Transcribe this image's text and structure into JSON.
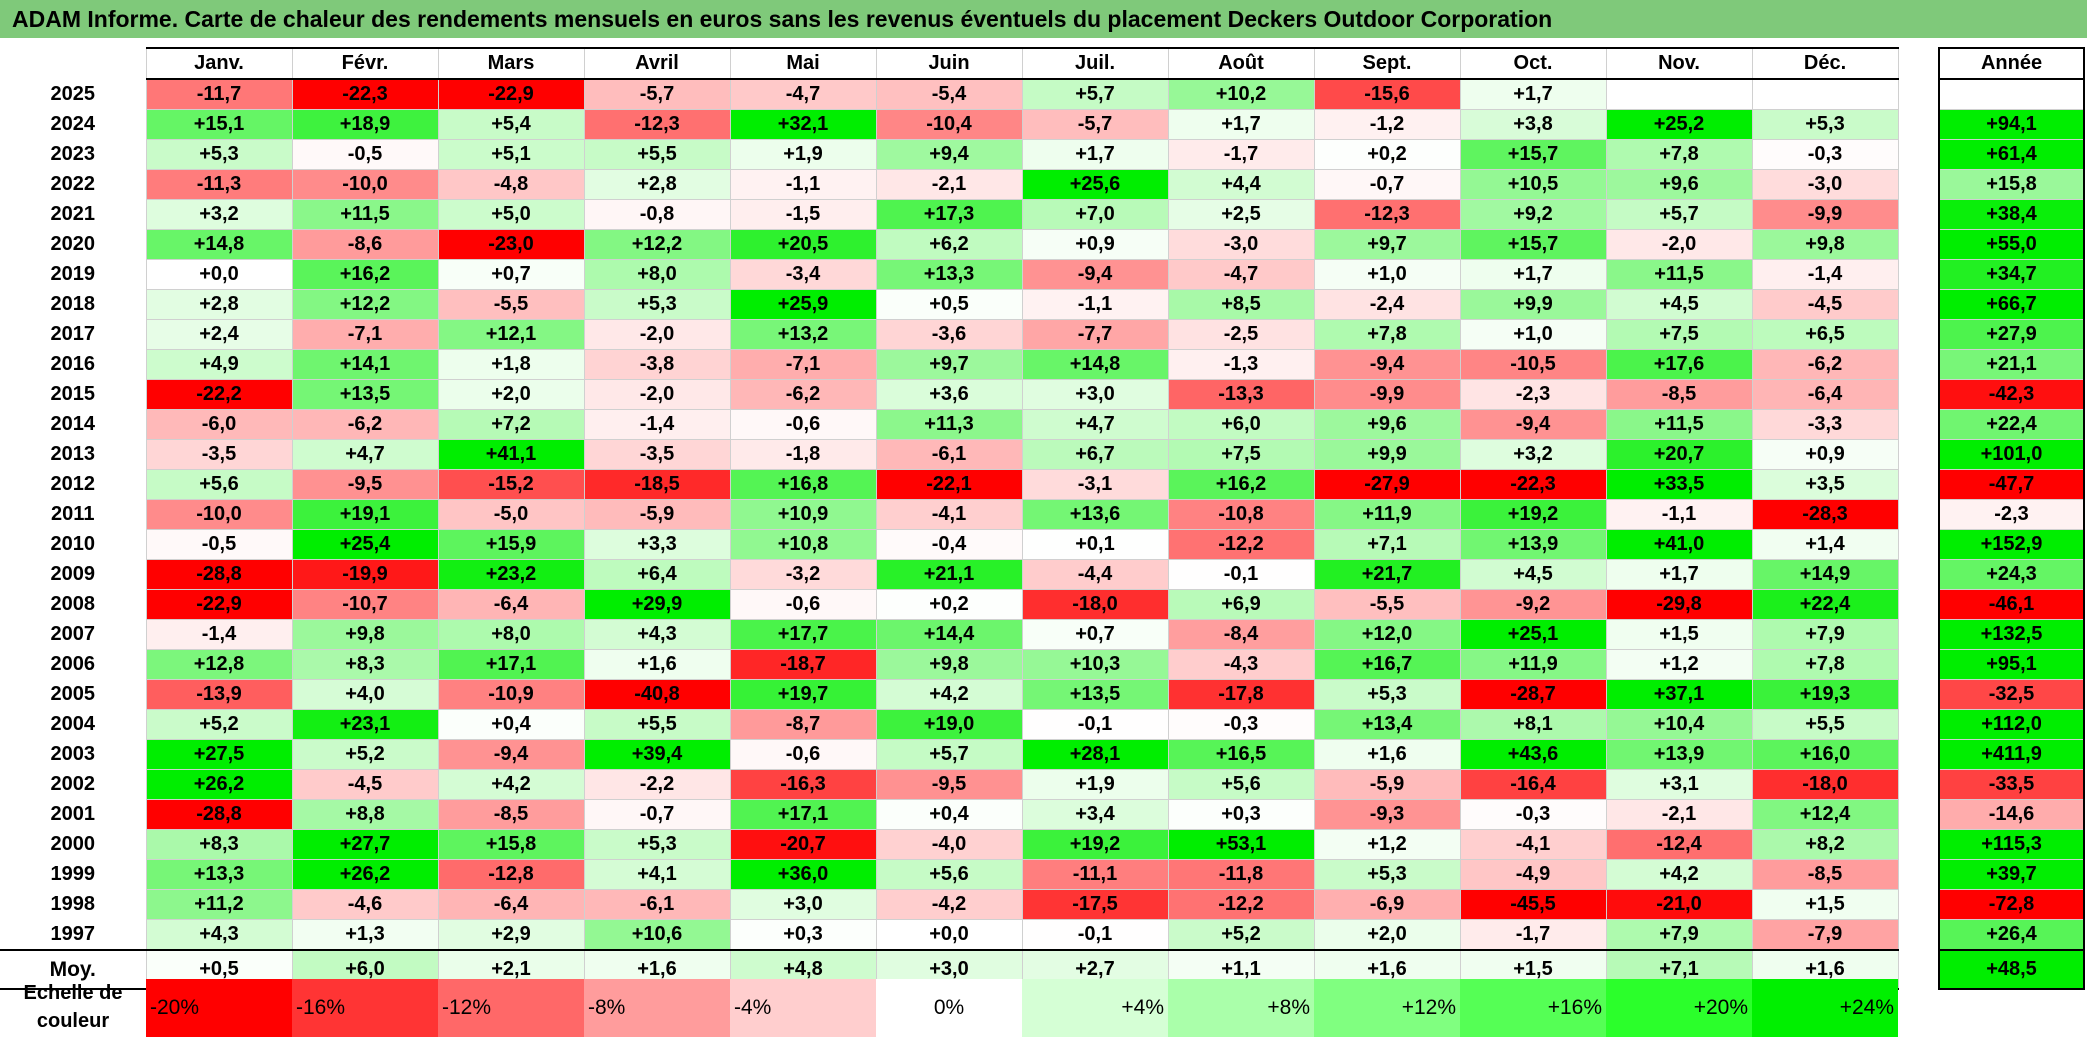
{
  "title": "ADAM Informe. Carte de chaleur des rendements mensuels en euros sans les revenus éventuels du placement Deckers Outdoor Corporation",
  "chart_data": {
    "type": "heatmap",
    "columns": [
      "Janv.",
      "Févr.",
      "Mars",
      "Avril",
      "Mai",
      "Juin",
      "Juil.",
      "Août",
      "Sept.",
      "Oct.",
      "Nov.",
      "Déc."
    ],
    "annual_header": "Année",
    "rows": [
      {
        "year": "2025",
        "values": [
          "-11,7",
          "-22,3",
          "-22,9",
          "-5,7",
          "-4,7",
          "-5,4",
          "+5,7",
          "+10,2",
          "-15,6",
          "+1,7",
          "",
          ""
        ],
        "annual": ""
      },
      {
        "year": "2024",
        "values": [
          "+15,1",
          "+18,9",
          "+5,4",
          "-12,3",
          "+32,1",
          "-10,4",
          "-5,7",
          "+1,7",
          "-1,2",
          "+3,8",
          "+25,2",
          "+5,3"
        ],
        "annual": "+94,1"
      },
      {
        "year": "2023",
        "values": [
          "+5,3",
          "-0,5",
          "+5,1",
          "+5,5",
          "+1,9",
          "+9,4",
          "+1,7",
          "-1,7",
          "+0,2",
          "+15,7",
          "+7,8",
          "-0,3"
        ],
        "annual": "+61,4"
      },
      {
        "year": "2022",
        "values": [
          "-11,3",
          "-10,0",
          "-4,8",
          "+2,8",
          "-1,1",
          "-2,1",
          "+25,6",
          "+4,4",
          "-0,7",
          "+10,5",
          "+9,6",
          "-3,0"
        ],
        "annual": "+15,8"
      },
      {
        "year": "2021",
        "values": [
          "+3,2",
          "+11,5",
          "+5,0",
          "-0,8",
          "-1,5",
          "+17,3",
          "+7,0",
          "+2,5",
          "-12,3",
          "+9,2",
          "+5,7",
          "-9,9"
        ],
        "annual": "+38,4"
      },
      {
        "year": "2020",
        "values": [
          "+14,8",
          "-8,6",
          "-23,0",
          "+12,2",
          "+20,5",
          "+6,2",
          "+0,9",
          "-3,0",
          "+9,7",
          "+15,7",
          "-2,0",
          "+9,8"
        ],
        "annual": "+55,0"
      },
      {
        "year": "2019",
        "values": [
          "+0,0",
          "+16,2",
          "+0,7",
          "+8,0",
          "-3,4",
          "+13,3",
          "-9,4",
          "-4,7",
          "+1,0",
          "+1,7",
          "+11,5",
          "-1,4"
        ],
        "annual": "+34,7"
      },
      {
        "year": "2018",
        "values": [
          "+2,8",
          "+12,2",
          "-5,5",
          "+5,3",
          "+25,9",
          "+0,5",
          "-1,1",
          "+8,5",
          "-2,4",
          "+9,9",
          "+4,5",
          "-4,5"
        ],
        "annual": "+66,7"
      },
      {
        "year": "2017",
        "values": [
          "+2,4",
          "-7,1",
          "+12,1",
          "-2,0",
          "+13,2",
          "-3,6",
          "-7,7",
          "-2,5",
          "+7,8",
          "+1,0",
          "+7,5",
          "+6,5"
        ],
        "annual": "+27,9"
      },
      {
        "year": "2016",
        "values": [
          "+4,9",
          "+14,1",
          "+1,8",
          "-3,8",
          "-7,1",
          "+9,7",
          "+14,8",
          "-1,3",
          "-9,4",
          "-10,5",
          "+17,6",
          "-6,2"
        ],
        "annual": "+21,1"
      },
      {
        "year": "2015",
        "values": [
          "-22,2",
          "+13,5",
          "+2,0",
          "-2,0",
          "-6,2",
          "+3,6",
          "+3,0",
          "-13,3",
          "-9,9",
          "-2,3",
          "-8,5",
          "-6,4"
        ],
        "annual": "-42,3"
      },
      {
        "year": "2014",
        "values": [
          "-6,0",
          "-6,2",
          "+7,2",
          "-1,4",
          "-0,6",
          "+11,3",
          "+4,7",
          "+6,0",
          "+9,6",
          "-9,4",
          "+11,5",
          "-3,3"
        ],
        "annual": "+22,4"
      },
      {
        "year": "2013",
        "values": [
          "-3,5",
          "+4,7",
          "+41,1",
          "-3,5",
          "-1,8",
          "-6,1",
          "+6,7",
          "+7,5",
          "+9,9",
          "+3,2",
          "+20,7",
          "+0,9"
        ],
        "annual": "+101,0"
      },
      {
        "year": "2012",
        "values": [
          "+5,6",
          "-9,5",
          "-15,2",
          "-18,5",
          "+16,8",
          "-22,1",
          "-3,1",
          "+16,2",
          "-27,9",
          "-22,3",
          "+33,5",
          "+3,5"
        ],
        "annual": "-47,7"
      },
      {
        "year": "2011",
        "values": [
          "-10,0",
          "+19,1",
          "-5,0",
          "-5,9",
          "+10,9",
          "-4,1",
          "+13,6",
          "-10,8",
          "+11,9",
          "+19,2",
          "-1,1",
          "-28,3"
        ],
        "annual": "-2,3"
      },
      {
        "year": "2010",
        "values": [
          "-0,5",
          "+25,4",
          "+15,9",
          "+3,3",
          "+10,8",
          "-0,4",
          "+0,1",
          "-12,2",
          "+7,1",
          "+13,9",
          "+41,0",
          "+1,4"
        ],
        "annual": "+152,9"
      },
      {
        "year": "2009",
        "values": [
          "-28,8",
          "-19,9",
          "+23,2",
          "+6,4",
          "-3,2",
          "+21,1",
          "-4,4",
          "-0,1",
          "+21,7",
          "+4,5",
          "+1,7",
          "+14,9"
        ],
        "annual": "+24,3"
      },
      {
        "year": "2008",
        "values": [
          "-22,9",
          "-10,7",
          "-6,4",
          "+29,9",
          "-0,6",
          "+0,2",
          "-18,0",
          "+6,9",
          "-5,5",
          "-9,2",
          "-29,8",
          "+22,4"
        ],
        "annual": "-46,1"
      },
      {
        "year": "2007",
        "values": [
          "-1,4",
          "+9,8",
          "+8,0",
          "+4,3",
          "+17,7",
          "+14,4",
          "+0,7",
          "-8,4",
          "+12,0",
          "+25,1",
          "+1,5",
          "+7,9"
        ],
        "annual": "+132,5"
      },
      {
        "year": "2006",
        "values": [
          "+12,8",
          "+8,3",
          "+17,1",
          "+1,6",
          "-18,7",
          "+9,8",
          "+10,3",
          "-4,3",
          "+16,7",
          "+11,9",
          "+1,2",
          "+7,8"
        ],
        "annual": "+95,1"
      },
      {
        "year": "2005",
        "values": [
          "-13,9",
          "+4,0",
          "-10,9",
          "-40,8",
          "+19,7",
          "+4,2",
          "+13,5",
          "-17,8",
          "+5,3",
          "-28,7",
          "+37,1",
          "+19,3"
        ],
        "annual": "-32,5"
      },
      {
        "year": "2004",
        "values": [
          "+5,2",
          "+23,1",
          "+0,4",
          "+5,5",
          "-8,7",
          "+19,0",
          "-0,1",
          "-0,3",
          "+13,4",
          "+8,1",
          "+10,4",
          "+5,5"
        ],
        "annual": "+112,0"
      },
      {
        "year": "2003",
        "values": [
          "+27,5",
          "+5,2",
          "-9,4",
          "+39,4",
          "-0,6",
          "+5,7",
          "+28,1",
          "+16,5",
          "+1,6",
          "+43,6",
          "+13,9",
          "+16,0"
        ],
        "annual": "+411,9"
      },
      {
        "year": "2002",
        "values": [
          "+26,2",
          "-4,5",
          "+4,2",
          "-2,2",
          "-16,3",
          "-9,5",
          "+1,9",
          "+5,6",
          "-5,9",
          "-16,4",
          "+3,1",
          "-18,0"
        ],
        "annual": "-33,5"
      },
      {
        "year": "2001",
        "values": [
          "-28,8",
          "+8,8",
          "-8,5",
          "-0,7",
          "+17,1",
          "+0,4",
          "+3,4",
          "+0,3",
          "-9,3",
          "-0,3",
          "-2,1",
          "+12,4"
        ],
        "annual": "-14,6"
      },
      {
        "year": "2000",
        "values": [
          "+8,3",
          "+27,7",
          "+15,8",
          "+5,3",
          "-20,7",
          "-4,0",
          "+19,2",
          "+53,1",
          "+1,2",
          "-4,1",
          "-12,4",
          "+8,2"
        ],
        "annual": "+115,3"
      },
      {
        "year": "1999",
        "values": [
          "+13,3",
          "+26,2",
          "-12,8",
          "+4,1",
          "+36,0",
          "+5,6",
          "-11,1",
          "-11,8",
          "+5,3",
          "-4,9",
          "+4,2",
          "-8,5"
        ],
        "annual": "+39,7"
      },
      {
        "year": "1998",
        "values": [
          "+11,2",
          "-4,6",
          "-6,4",
          "-6,1",
          "+3,0",
          "-4,2",
          "-17,5",
          "-12,2",
          "-6,9",
          "-45,5",
          "-21,0",
          "+1,5"
        ],
        "annual": "-72,8"
      },
      {
        "year": "1997",
        "values": [
          "+4,3",
          "+1,3",
          "+2,9",
          "+10,6",
          "+0,3",
          "+0,0",
          "-0,1",
          "+5,2",
          "+2,0",
          "-1,7",
          "+7,9",
          "-7,9"
        ],
        "annual": "+26,4"
      }
    ],
    "average": {
      "label": "Moy.",
      "values": [
        "+0,5",
        "+6,0",
        "+2,1",
        "+1,6",
        "+4,8",
        "+3,0",
        "+2,7",
        "+1,1",
        "+1,6",
        "+1,5",
        "+7,1",
        "+1,6"
      ],
      "annual": "+48,5"
    },
    "scale": {
      "label": "Echelle de couleur",
      "steps": [
        {
          "label": "-20%",
          "value": -20,
          "color": "#ff0000"
        },
        {
          "label": "-16%",
          "value": -16,
          "color": "#ff3434"
        },
        {
          "label": "-12%",
          "value": -12,
          "color": "#ff6868"
        },
        {
          "label": "-8%",
          "value": -8,
          "color": "#ff9c9c"
        },
        {
          "label": "-4%",
          "value": -4,
          "color": "#ffcece"
        },
        {
          "label": "0%",
          "value": 0,
          "color": "#ffffff"
        },
        {
          "label": "+4%",
          "value": 4,
          "color": "#d5ffd5"
        },
        {
          "label": "+8%",
          "value": 8,
          "color": "#aaffaa"
        },
        {
          "label": "+12%",
          "value": 12,
          "color": "#80ff80"
        },
        {
          "label": "+16%",
          "value": 16,
          "color": "#55ff55"
        },
        {
          "label": "+20%",
          "value": 20,
          "color": "#2bff2b"
        },
        {
          "label": "+24%",
          "value": 24,
          "color": "#00f000"
        }
      ]
    },
    "colors": {
      "positive_max": "#00ee00",
      "negative_max": "#ff0000",
      "neutral": "#ffffff",
      "title_bg": "#7fc97a"
    }
  }
}
